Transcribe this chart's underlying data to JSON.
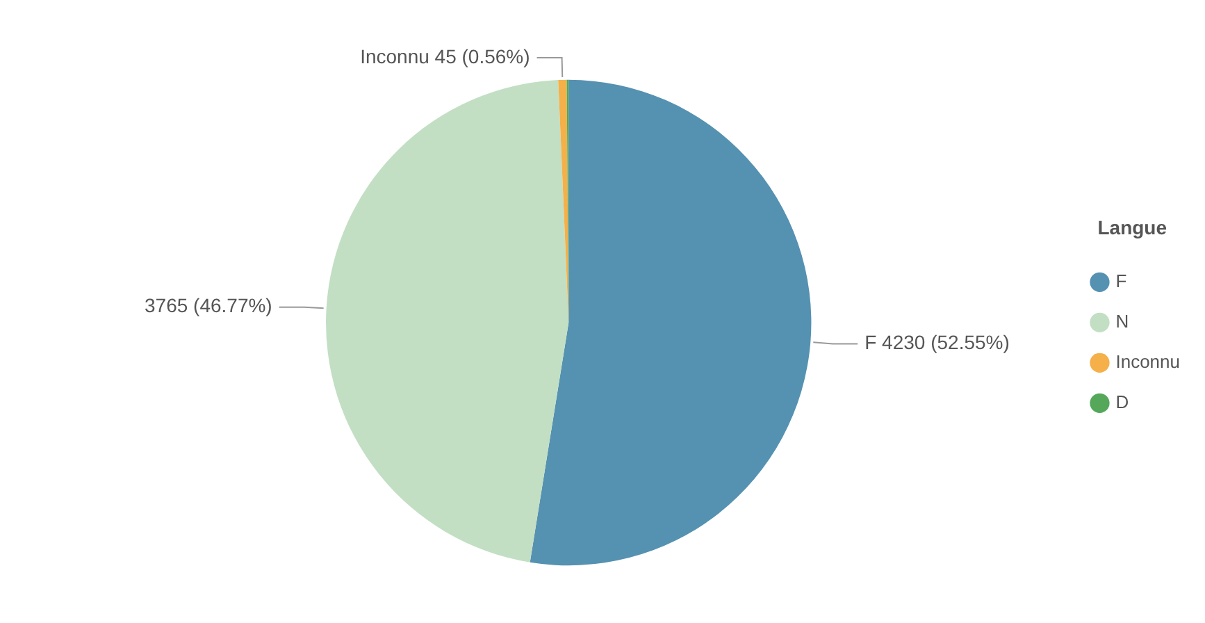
{
  "chart_data": {
    "type": "pie",
    "legend_title": "Langue",
    "legend": "right",
    "categories": [
      "F",
      "N",
      "Inconnu",
      "D"
    ],
    "values": [
      4230,
      3765,
      45,
      10
    ],
    "colors": [
      "#5591b1",
      "#c2dfc3",
      "#f5b04a",
      "#55a85a"
    ],
    "value_labels": [
      "F 4230 (52.55%)",
      "3765 (46.77%)",
      "Inconnu 45 (0.56%)",
      null
    ]
  }
}
